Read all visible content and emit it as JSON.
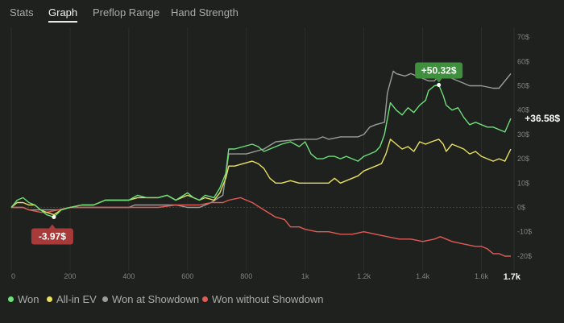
{
  "tabs": [
    {
      "label": "Stats",
      "active": false
    },
    {
      "label": "Graph",
      "active": true
    },
    {
      "label": "Preflop Range",
      "active": false
    },
    {
      "label": "Hand Strength",
      "active": false
    }
  ],
  "colors": {
    "background": "#1f211f",
    "won": "#6ee07a",
    "allin_ev": "#e8e160",
    "showdown": "#9a9d9a",
    "no_showdown": "#e25a54",
    "positive_badge": "#3f8f3f",
    "negative_badge": "#a83a3a"
  },
  "chart_data": {
    "type": "line",
    "title": "",
    "xlabel": "",
    "ylabel": "",
    "x_ticks": [
      "0",
      "200",
      "400",
      "600",
      "800",
      "1k",
      "1.2k",
      "1.4k",
      "1.6k"
    ],
    "x_tick_values": [
      0,
      200,
      400,
      600,
      800,
      1000,
      1200,
      1400,
      1600
    ],
    "x_end_label": "1.7k",
    "x_end_value": 1700,
    "y_ticks": [
      "70$",
      "60$",
      "50$",
      "40$",
      "30$",
      "20$",
      "10$",
      "0$",
      "-10$",
      "-20$"
    ],
    "y_tick_values": [
      70,
      60,
      50,
      40,
      30,
      20,
      10,
      0,
      -10,
      -20
    ],
    "xlim": [
      0,
      1700
    ],
    "ylim": [
      -22,
      72
    ],
    "grid": true,
    "legend_position": "bottom",
    "annotations": {
      "max": {
        "label": "+50.32$",
        "x": 1455,
        "y": 50.32
      },
      "min": {
        "label": "-3.97$",
        "x": 145,
        "y": -3.97
      },
      "final": {
        "label": "+36.58$",
        "x": 1700,
        "y": 36.58
      }
    },
    "series": [
      {
        "name": "Won",
        "color": "#6ee07a",
        "points": [
          [
            0,
            0
          ],
          [
            20,
            3
          ],
          [
            40,
            4
          ],
          [
            60,
            2
          ],
          [
            80,
            1
          ],
          [
            100,
            -1
          ],
          [
            120,
            -3
          ],
          [
            145,
            -3.97
          ],
          [
            170,
            -1
          ],
          [
            200,
            0
          ],
          [
            240,
            1
          ],
          [
            280,
            1
          ],
          [
            320,
            3
          ],
          [
            360,
            3
          ],
          [
            400,
            3
          ],
          [
            430,
            5
          ],
          [
            460,
            4
          ],
          [
            500,
            4
          ],
          [
            530,
            5
          ],
          [
            560,
            3
          ],
          [
            600,
            6
          ],
          [
            620,
            4
          ],
          [
            640,
            3
          ],
          [
            660,
            5
          ],
          [
            690,
            4
          ],
          [
            710,
            8
          ],
          [
            730,
            14
          ],
          [
            740,
            24
          ],
          [
            760,
            24
          ],
          [
            790,
            25
          ],
          [
            820,
            26
          ],
          [
            840,
            25
          ],
          [
            860,
            23
          ],
          [
            880,
            24
          ],
          [
            900,
            25
          ],
          [
            920,
            26
          ],
          [
            950,
            27
          ],
          [
            980,
            25
          ],
          [
            1000,
            27
          ],
          [
            1020,
            22
          ],
          [
            1040,
            20
          ],
          [
            1060,
            20
          ],
          [
            1080,
            21
          ],
          [
            1100,
            21
          ],
          [
            1120,
            20
          ],
          [
            1140,
            21
          ],
          [
            1160,
            20
          ],
          [
            1180,
            19
          ],
          [
            1200,
            21
          ],
          [
            1220,
            22
          ],
          [
            1240,
            23
          ],
          [
            1255,
            25
          ],
          [
            1270,
            30
          ],
          [
            1290,
            43
          ],
          [
            1310,
            40
          ],
          [
            1330,
            38
          ],
          [
            1350,
            41
          ],
          [
            1370,
            39
          ],
          [
            1390,
            42
          ],
          [
            1410,
            44
          ],
          [
            1420,
            48
          ],
          [
            1440,
            50
          ],
          [
            1455,
            50.32
          ],
          [
            1470,
            46
          ],
          [
            1480,
            42
          ],
          [
            1500,
            40
          ],
          [
            1520,
            41
          ],
          [
            1540,
            37
          ],
          [
            1560,
            34
          ],
          [
            1580,
            35
          ],
          [
            1600,
            34
          ],
          [
            1620,
            33
          ],
          [
            1640,
            33
          ],
          [
            1660,
            32
          ],
          [
            1680,
            31
          ],
          [
            1700,
            36.58
          ]
        ]
      },
      {
        "name": "All-in EV",
        "color": "#e8e160",
        "points": [
          [
            0,
            0
          ],
          [
            20,
            2
          ],
          [
            40,
            2
          ],
          [
            60,
            1
          ],
          [
            80,
            1
          ],
          [
            100,
            -1
          ],
          [
            120,
            -2
          ],
          [
            145,
            -3
          ],
          [
            170,
            -1
          ],
          [
            200,
            0
          ],
          [
            240,
            1
          ],
          [
            280,
            1
          ],
          [
            320,
            3
          ],
          [
            360,
            3
          ],
          [
            400,
            3
          ],
          [
            430,
            4
          ],
          [
            460,
            4
          ],
          [
            500,
            4
          ],
          [
            530,
            5
          ],
          [
            560,
            3
          ],
          [
            600,
            5
          ],
          [
            620,
            4
          ],
          [
            640,
            3
          ],
          [
            660,
            4
          ],
          [
            690,
            3
          ],
          [
            710,
            6
          ],
          [
            730,
            12
          ],
          [
            740,
            17
          ],
          [
            760,
            17
          ],
          [
            790,
            18
          ],
          [
            820,
            19
          ],
          [
            840,
            18
          ],
          [
            860,
            16
          ],
          [
            880,
            12
          ],
          [
            900,
            10
          ],
          [
            920,
            10
          ],
          [
            950,
            11
          ],
          [
            980,
            10
          ],
          [
            1000,
            10
          ],
          [
            1020,
            10
          ],
          [
            1040,
            10
          ],
          [
            1060,
            10
          ],
          [
            1080,
            10
          ],
          [
            1100,
            12
          ],
          [
            1120,
            10
          ],
          [
            1140,
            11
          ],
          [
            1160,
            12
          ],
          [
            1180,
            13
          ],
          [
            1200,
            15
          ],
          [
            1220,
            16
          ],
          [
            1240,
            17
          ],
          [
            1260,
            18
          ],
          [
            1275,
            22
          ],
          [
            1290,
            28
          ],
          [
            1310,
            26
          ],
          [
            1330,
            24
          ],
          [
            1350,
            25
          ],
          [
            1370,
            23
          ],
          [
            1390,
            27
          ],
          [
            1410,
            26
          ],
          [
            1430,
            27
          ],
          [
            1455,
            28
          ],
          [
            1470,
            26
          ],
          [
            1480,
            23
          ],
          [
            1500,
            26
          ],
          [
            1520,
            25
          ],
          [
            1540,
            24
          ],
          [
            1560,
            22
          ],
          [
            1580,
            23
          ],
          [
            1600,
            21
          ],
          [
            1620,
            20
          ],
          [
            1640,
            19
          ],
          [
            1660,
            20
          ],
          [
            1680,
            19
          ],
          [
            1700,
            24
          ]
        ]
      },
      {
        "name": "Won at Showdown",
        "color": "#9a9d9a",
        "points": [
          [
            0,
            0
          ],
          [
            40,
            0
          ],
          [
            60,
            -1
          ],
          [
            100,
            -1
          ],
          [
            120,
            -1
          ],
          [
            160,
            -1
          ],
          [
            200,
            0
          ],
          [
            400,
            0
          ],
          [
            420,
            1
          ],
          [
            440,
            1
          ],
          [
            500,
            1
          ],
          [
            560,
            1
          ],
          [
            600,
            0
          ],
          [
            640,
            0
          ],
          [
            680,
            2
          ],
          [
            720,
            5
          ],
          [
            740,
            22
          ],
          [
            800,
            22
          ],
          [
            860,
            24
          ],
          [
            900,
            27
          ],
          [
            980,
            28
          ],
          [
            1020,
            28
          ],
          [
            1040,
            28
          ],
          [
            1060,
            29
          ],
          [
            1080,
            28
          ],
          [
            1120,
            29
          ],
          [
            1180,
            29
          ],
          [
            1200,
            30
          ],
          [
            1220,
            33
          ],
          [
            1240,
            34
          ],
          [
            1270,
            35
          ],
          [
            1280,
            47
          ],
          [
            1300,
            56
          ],
          [
            1310,
            55
          ],
          [
            1340,
            54
          ],
          [
            1360,
            55
          ],
          [
            1380,
            54
          ],
          [
            1420,
            52
          ],
          [
            1440,
            52
          ],
          [
            1460,
            55
          ],
          [
            1480,
            55
          ],
          [
            1500,
            53
          ],
          [
            1540,
            51
          ],
          [
            1560,
            50
          ],
          [
            1600,
            50
          ],
          [
            1640,
            49
          ],
          [
            1660,
            49
          ],
          [
            1700,
            55
          ]
        ]
      },
      {
        "name": "Won without Showdown",
        "color": "#e25a54",
        "points": [
          [
            0,
            0
          ],
          [
            40,
            0
          ],
          [
            60,
            -1
          ],
          [
            100,
            -2
          ],
          [
            120,
            -2
          ],
          [
            160,
            -1
          ],
          [
            200,
            0
          ],
          [
            300,
            0
          ],
          [
            400,
            0
          ],
          [
            500,
            0
          ],
          [
            560,
            1
          ],
          [
            600,
            1
          ],
          [
            640,
            1
          ],
          [
            680,
            2
          ],
          [
            720,
            2
          ],
          [
            740,
            3
          ],
          [
            780,
            4
          ],
          [
            800,
            3
          ],
          [
            820,
            2
          ],
          [
            860,
            -1
          ],
          [
            900,
            -4
          ],
          [
            930,
            -5
          ],
          [
            950,
            -8
          ],
          [
            980,
            -8
          ],
          [
            1000,
            -9
          ],
          [
            1040,
            -10
          ],
          [
            1080,
            -10
          ],
          [
            1120,
            -11
          ],
          [
            1160,
            -11
          ],
          [
            1200,
            -10
          ],
          [
            1240,
            -11
          ],
          [
            1280,
            -12
          ],
          [
            1320,
            -13
          ],
          [
            1360,
            -13
          ],
          [
            1400,
            -14
          ],
          [
            1440,
            -13
          ],
          [
            1460,
            -12
          ],
          [
            1480,
            -13
          ],
          [
            1500,
            -14
          ],
          [
            1540,
            -15
          ],
          [
            1580,
            -16
          ],
          [
            1600,
            -16
          ],
          [
            1620,
            -17
          ],
          [
            1640,
            -19
          ],
          [
            1660,
            -19
          ],
          [
            1680,
            -20
          ],
          [
            1700,
            -20
          ]
        ]
      }
    ]
  },
  "legend": [
    {
      "label": "Won",
      "color": "#6ee07a"
    },
    {
      "label": "All-in EV",
      "color": "#e8e160"
    },
    {
      "label": "Won at Showdown",
      "color": "#9a9d9a"
    },
    {
      "label": "Won without Showdown",
      "color": "#e25a54"
    }
  ]
}
